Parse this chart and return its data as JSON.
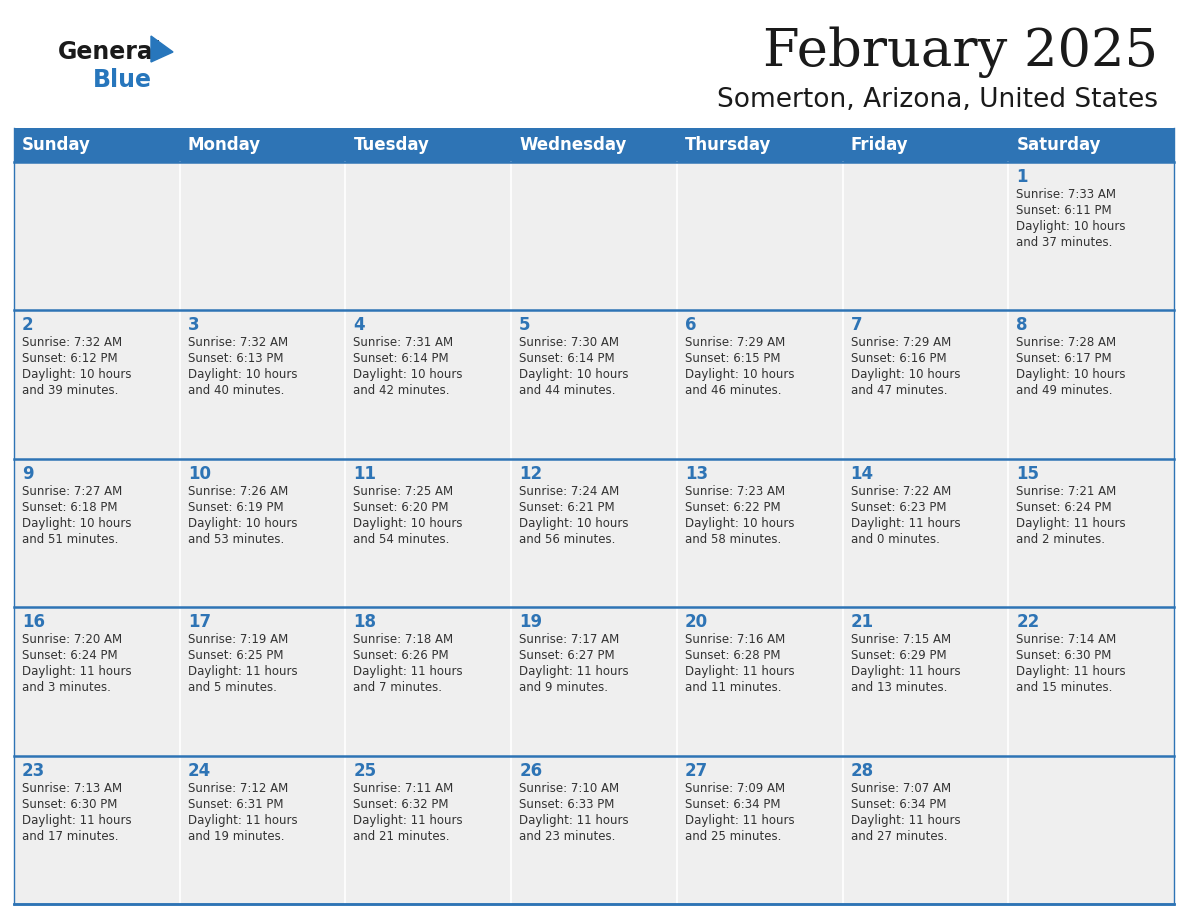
{
  "title": "February 2025",
  "subtitle": "Somerton, Arizona, United States",
  "header_color": "#2E74B5",
  "header_text_color": "#FFFFFF",
  "cell_bg_color": "#EFEFEF",
  "text_color": "#333333",
  "day_number_color": "#2E74B5",
  "line_color": "#2E74B5",
  "days_of_week": [
    "Sunday",
    "Monday",
    "Tuesday",
    "Wednesday",
    "Thursday",
    "Friday",
    "Saturday"
  ],
  "weeks": [
    [
      {
        "day": "",
        "sunrise": "",
        "sunset": "",
        "daylight": ""
      },
      {
        "day": "",
        "sunrise": "",
        "sunset": "",
        "daylight": ""
      },
      {
        "day": "",
        "sunrise": "",
        "sunset": "",
        "daylight": ""
      },
      {
        "day": "",
        "sunrise": "",
        "sunset": "",
        "daylight": ""
      },
      {
        "day": "",
        "sunrise": "",
        "sunset": "",
        "daylight": ""
      },
      {
        "day": "",
        "sunrise": "",
        "sunset": "",
        "daylight": ""
      },
      {
        "day": "1",
        "sunrise": "Sunrise: 7:33 AM",
        "sunset": "Sunset: 6:11 PM",
        "daylight": "Daylight: 10 hours\nand 37 minutes."
      }
    ],
    [
      {
        "day": "2",
        "sunrise": "Sunrise: 7:32 AM",
        "sunset": "Sunset: 6:12 PM",
        "daylight": "Daylight: 10 hours\nand 39 minutes."
      },
      {
        "day": "3",
        "sunrise": "Sunrise: 7:32 AM",
        "sunset": "Sunset: 6:13 PM",
        "daylight": "Daylight: 10 hours\nand 40 minutes."
      },
      {
        "day": "4",
        "sunrise": "Sunrise: 7:31 AM",
        "sunset": "Sunset: 6:14 PM",
        "daylight": "Daylight: 10 hours\nand 42 minutes."
      },
      {
        "day": "5",
        "sunrise": "Sunrise: 7:30 AM",
        "sunset": "Sunset: 6:14 PM",
        "daylight": "Daylight: 10 hours\nand 44 minutes."
      },
      {
        "day": "6",
        "sunrise": "Sunrise: 7:29 AM",
        "sunset": "Sunset: 6:15 PM",
        "daylight": "Daylight: 10 hours\nand 46 minutes."
      },
      {
        "day": "7",
        "sunrise": "Sunrise: 7:29 AM",
        "sunset": "Sunset: 6:16 PM",
        "daylight": "Daylight: 10 hours\nand 47 minutes."
      },
      {
        "day": "8",
        "sunrise": "Sunrise: 7:28 AM",
        "sunset": "Sunset: 6:17 PM",
        "daylight": "Daylight: 10 hours\nand 49 minutes."
      }
    ],
    [
      {
        "day": "9",
        "sunrise": "Sunrise: 7:27 AM",
        "sunset": "Sunset: 6:18 PM",
        "daylight": "Daylight: 10 hours\nand 51 minutes."
      },
      {
        "day": "10",
        "sunrise": "Sunrise: 7:26 AM",
        "sunset": "Sunset: 6:19 PM",
        "daylight": "Daylight: 10 hours\nand 53 minutes."
      },
      {
        "day": "11",
        "sunrise": "Sunrise: 7:25 AM",
        "sunset": "Sunset: 6:20 PM",
        "daylight": "Daylight: 10 hours\nand 54 minutes."
      },
      {
        "day": "12",
        "sunrise": "Sunrise: 7:24 AM",
        "sunset": "Sunset: 6:21 PM",
        "daylight": "Daylight: 10 hours\nand 56 minutes."
      },
      {
        "day": "13",
        "sunrise": "Sunrise: 7:23 AM",
        "sunset": "Sunset: 6:22 PM",
        "daylight": "Daylight: 10 hours\nand 58 minutes."
      },
      {
        "day": "14",
        "sunrise": "Sunrise: 7:22 AM",
        "sunset": "Sunset: 6:23 PM",
        "daylight": "Daylight: 11 hours\nand 0 minutes."
      },
      {
        "day": "15",
        "sunrise": "Sunrise: 7:21 AM",
        "sunset": "Sunset: 6:24 PM",
        "daylight": "Daylight: 11 hours\nand 2 minutes."
      }
    ],
    [
      {
        "day": "16",
        "sunrise": "Sunrise: 7:20 AM",
        "sunset": "Sunset: 6:24 PM",
        "daylight": "Daylight: 11 hours\nand 3 minutes."
      },
      {
        "day": "17",
        "sunrise": "Sunrise: 7:19 AM",
        "sunset": "Sunset: 6:25 PM",
        "daylight": "Daylight: 11 hours\nand 5 minutes."
      },
      {
        "day": "18",
        "sunrise": "Sunrise: 7:18 AM",
        "sunset": "Sunset: 6:26 PM",
        "daylight": "Daylight: 11 hours\nand 7 minutes."
      },
      {
        "day": "19",
        "sunrise": "Sunrise: 7:17 AM",
        "sunset": "Sunset: 6:27 PM",
        "daylight": "Daylight: 11 hours\nand 9 minutes."
      },
      {
        "day": "20",
        "sunrise": "Sunrise: 7:16 AM",
        "sunset": "Sunset: 6:28 PM",
        "daylight": "Daylight: 11 hours\nand 11 minutes."
      },
      {
        "day": "21",
        "sunrise": "Sunrise: 7:15 AM",
        "sunset": "Sunset: 6:29 PM",
        "daylight": "Daylight: 11 hours\nand 13 minutes."
      },
      {
        "day": "22",
        "sunrise": "Sunrise: 7:14 AM",
        "sunset": "Sunset: 6:30 PM",
        "daylight": "Daylight: 11 hours\nand 15 minutes."
      }
    ],
    [
      {
        "day": "23",
        "sunrise": "Sunrise: 7:13 AM",
        "sunset": "Sunset: 6:30 PM",
        "daylight": "Daylight: 11 hours\nand 17 minutes."
      },
      {
        "day": "24",
        "sunrise": "Sunrise: 7:12 AM",
        "sunset": "Sunset: 6:31 PM",
        "daylight": "Daylight: 11 hours\nand 19 minutes."
      },
      {
        "day": "25",
        "sunrise": "Sunrise: 7:11 AM",
        "sunset": "Sunset: 6:32 PM",
        "daylight": "Daylight: 11 hours\nand 21 minutes."
      },
      {
        "day": "26",
        "sunrise": "Sunrise: 7:10 AM",
        "sunset": "Sunset: 6:33 PM",
        "daylight": "Daylight: 11 hours\nand 23 minutes."
      },
      {
        "day": "27",
        "sunrise": "Sunrise: 7:09 AM",
        "sunset": "Sunset: 6:34 PM",
        "daylight": "Daylight: 11 hours\nand 25 minutes."
      },
      {
        "day": "28",
        "sunrise": "Sunrise: 7:07 AM",
        "sunset": "Sunset: 6:34 PM",
        "daylight": "Daylight: 11 hours\nand 27 minutes."
      },
      {
        "day": "",
        "sunrise": "",
        "sunset": "",
        "daylight": ""
      }
    ]
  ],
  "logo_general_color": "#1a1a1a",
  "logo_blue_color": "#2776BC",
  "logo_triangle_color": "#2776BC",
  "title_fontsize": 38,
  "subtitle_fontsize": 19,
  "header_fontsize": 12,
  "day_num_fontsize": 12,
  "cell_text_fontsize": 8.5
}
